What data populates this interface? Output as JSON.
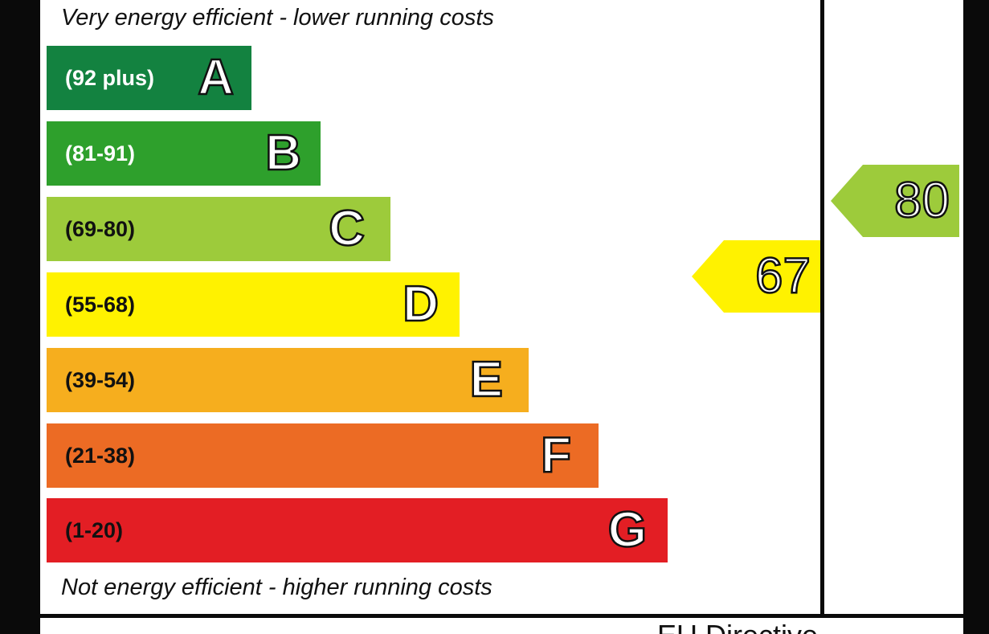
{
  "chart_data": {
    "type": "bar",
    "top_caption": "Very energy efficient - lower running costs",
    "bottom_caption": "Not energy efficient - higher running costs",
    "bands": [
      {
        "letter": "A",
        "range": "(92 plus)",
        "min": 92,
        "max": 100,
        "color": "#138240",
        "text_color": "#ffffff"
      },
      {
        "letter": "B",
        "range": "(81-91)",
        "min": 81,
        "max": 91,
        "color": "#2ea02c",
        "text_color": "#ffffff"
      },
      {
        "letter": "C",
        "range": "(69-80)",
        "min": 69,
        "max": 80,
        "color": "#9dcb3b",
        "text_color": "#111111"
      },
      {
        "letter": "D",
        "range": "(55-68)",
        "min": 55,
        "max": 68,
        "color": "#fff200",
        "text_color": "#111111"
      },
      {
        "letter": "E",
        "range": "(39-54)",
        "min": 39,
        "max": 54,
        "color": "#f6ae1e",
        "text_color": "#111111"
      },
      {
        "letter": "F",
        "range": "(21-38)",
        "min": 21,
        "max": 38,
        "color": "#ec6b24",
        "text_color": "#111111"
      },
      {
        "letter": "G",
        "range": "(1-20)",
        "min": 1,
        "max": 20,
        "color": "#e31e24",
        "text_color": "#111111"
      }
    ],
    "ratings": [
      {
        "value": 67,
        "value_label": "67",
        "band": "D",
        "color": "#fff200"
      },
      {
        "value": 80,
        "value_label": "80",
        "band": "C",
        "color": "#9dcb3b"
      }
    ],
    "footer_title": "EU Directive"
  }
}
